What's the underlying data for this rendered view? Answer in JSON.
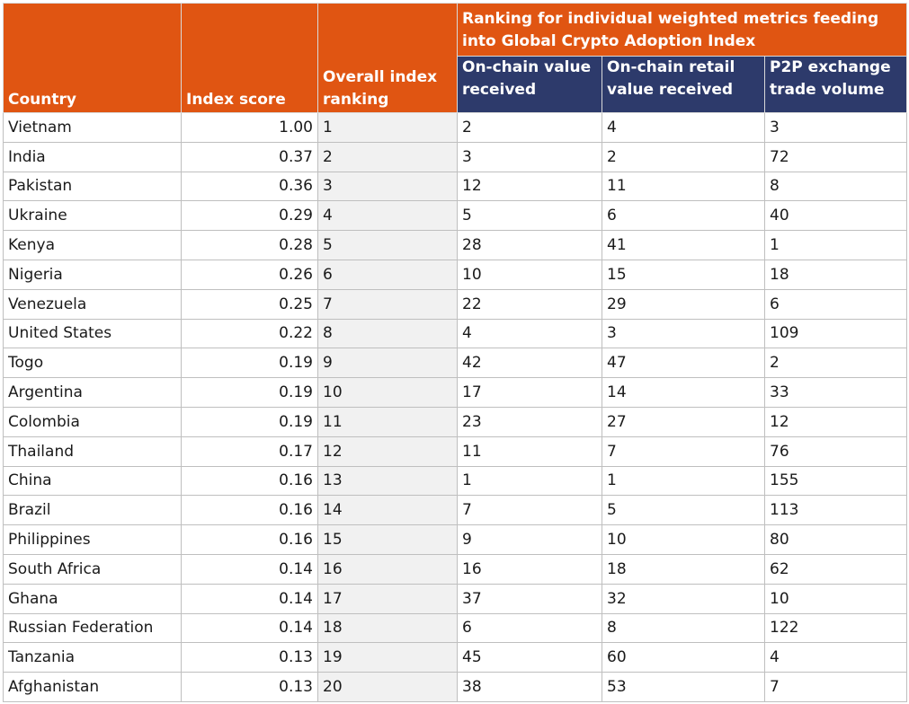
{
  "header": {
    "country": "Country",
    "index_score": "Index score",
    "overall_ranking": "Overall index ranking",
    "group_title": "Ranking for individual weighted metrics feeding into Global Crypto Adoption Index",
    "onchain_value": "On-chain value received",
    "onchain_retail": "On-chain retail value received",
    "p2p_volume": "P2P exchange trade volume"
  },
  "rows": [
    {
      "country": "Vietnam",
      "score": "1.00",
      "rank": "1",
      "onchain": "2",
      "retail": "4",
      "p2p": "3"
    },
    {
      "country": "India",
      "score": "0.37",
      "rank": "2",
      "onchain": "3",
      "retail": "2",
      "p2p": "72"
    },
    {
      "country": "Pakistan",
      "score": "0.36",
      "rank": "3",
      "onchain": "12",
      "retail": "11",
      "p2p": "8"
    },
    {
      "country": "Ukraine",
      "score": "0.29",
      "rank": "4",
      "onchain": "5",
      "retail": "6",
      "p2p": "40"
    },
    {
      "country": "Kenya",
      "score": "0.28",
      "rank": "5",
      "onchain": "28",
      "retail": "41",
      "p2p": "1"
    },
    {
      "country": "Nigeria",
      "score": "0.26",
      "rank": "6",
      "onchain": "10",
      "retail": "15",
      "p2p": "18"
    },
    {
      "country": "Venezuela",
      "score": "0.25",
      "rank": "7",
      "onchain": "22",
      "retail": "29",
      "p2p": "6"
    },
    {
      "country": "United States",
      "score": "0.22",
      "rank": "8",
      "onchain": "4",
      "retail": "3",
      "p2p": "109"
    },
    {
      "country": "Togo",
      "score": "0.19",
      "rank": "9",
      "onchain": "42",
      "retail": "47",
      "p2p": "2"
    },
    {
      "country": "Argentina",
      "score": "0.19",
      "rank": "10",
      "onchain": "17",
      "retail": "14",
      "p2p": "33"
    },
    {
      "country": "Colombia",
      "score": "0.19",
      "rank": "11",
      "onchain": "23",
      "retail": "27",
      "p2p": "12"
    },
    {
      "country": "Thailand",
      "score": "0.17",
      "rank": "12",
      "onchain": "11",
      "retail": "7",
      "p2p": "76"
    },
    {
      "country": "China",
      "score": "0.16",
      "rank": "13",
      "onchain": "1",
      "retail": "1",
      "p2p": "155"
    },
    {
      "country": "Brazil",
      "score": "0.16",
      "rank": "14",
      "onchain": "7",
      "retail": "5",
      "p2p": "113"
    },
    {
      "country": "Philippines",
      "score": "0.16",
      "rank": "15",
      "onchain": "9",
      "retail": "10",
      "p2p": "80"
    },
    {
      "country": "South Africa",
      "score": "0.14",
      "rank": "16",
      "onchain": "16",
      "retail": "18",
      "p2p": "62"
    },
    {
      "country": "Ghana",
      "score": "0.14",
      "rank": "17",
      "onchain": "37",
      "retail": "32",
      "p2p": "10"
    },
    {
      "country": "Russian Federation",
      "score": "0.14",
      "rank": "18",
      "onchain": "6",
      "retail": "8",
      "p2p": "122"
    },
    {
      "country": "Tanzania",
      "score": "0.13",
      "rank": "19",
      "onchain": "45",
      "retail": "60",
      "p2p": "4"
    },
    {
      "country": "Afghanistan",
      "score": "0.13",
      "rank": "20",
      "onchain": "38",
      "retail": "53",
      "p2p": "7"
    }
  ],
  "colors": {
    "header_orange": "#e05512",
    "header_navy": "#2d3a6b",
    "rank_column_bg": "#f1f1f1",
    "gridline": "#bfbfbf"
  }
}
